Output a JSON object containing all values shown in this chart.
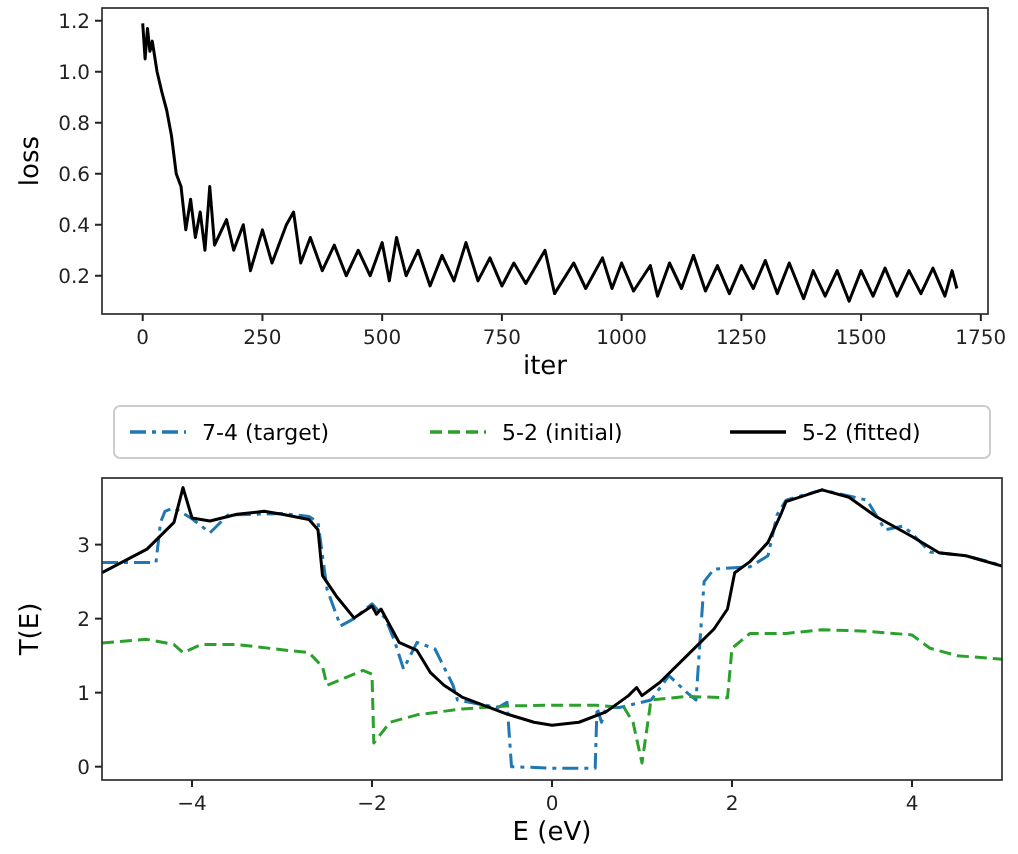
{
  "chart_data": [
    {
      "type": "line",
      "xlabel": "iter",
      "ylabel": "loss",
      "xlim": [
        -85,
        1765
      ],
      "ylim": [
        0.05,
        1.25
      ],
      "xticks": [
        0,
        250,
        500,
        750,
        1000,
        1250,
        1500,
        1750
      ],
      "yticks": [
        0.2,
        0.4,
        0.6,
        0.8,
        {
          "value": 1,
          "label": "1.0"
        },
        1.2
      ],
      "grid": false,
      "legend": false,
      "series": [
        {
          "color": "#000000",
          "line_style": "solid",
          "x": [
            0,
            5,
            10,
            15,
            20,
            30,
            40,
            50,
            60,
            70,
            80,
            90,
            100,
            110,
            120,
            130,
            140,
            150,
            175,
            190,
            210,
            225,
            250,
            270,
            300,
            315,
            330,
            350,
            375,
            400,
            425,
            450,
            475,
            500,
            515,
            530,
            550,
            575,
            600,
            625,
            650,
            675,
            700,
            725,
            750,
            775,
            800,
            840,
            860,
            900,
            925,
            960,
            980,
            1000,
            1025,
            1060,
            1075,
            1100,
            1125,
            1150,
            1175,
            1200,
            1225,
            1250,
            1275,
            1300,
            1325,
            1350,
            1380,
            1400,
            1425,
            1450,
            1475,
            1500,
            1525,
            1550,
            1575,
            1600,
            1625,
            1650,
            1675,
            1690,
            1700
          ],
          "values": [
            1.19,
            1.05,
            1.17,
            1.08,
            1.12,
            1.0,
            0.92,
            0.85,
            0.75,
            0.6,
            0.55,
            0.38,
            0.5,
            0.35,
            0.45,
            0.3,
            0.55,
            0.32,
            0.42,
            0.3,
            0.4,
            0.22,
            0.38,
            0.25,
            0.4,
            0.45,
            0.25,
            0.35,
            0.22,
            0.32,
            0.2,
            0.3,
            0.2,
            0.33,
            0.18,
            0.35,
            0.2,
            0.3,
            0.16,
            0.28,
            0.18,
            0.33,
            0.18,
            0.27,
            0.16,
            0.25,
            0.17,
            0.3,
            0.13,
            0.25,
            0.15,
            0.27,
            0.15,
            0.25,
            0.14,
            0.24,
            0.12,
            0.25,
            0.15,
            0.28,
            0.14,
            0.24,
            0.13,
            0.24,
            0.15,
            0.26,
            0.13,
            0.25,
            0.11,
            0.22,
            0.12,
            0.22,
            0.1,
            0.22,
            0.12,
            0.23,
            0.12,
            0.22,
            0.13,
            0.23,
            0.12,
            0.22,
            0.15
          ]
        }
      ]
    },
    {
      "type": "line",
      "xlabel": "E (eV)",
      "ylabel": "T(E)",
      "xlim": [
        -5,
        5
      ],
      "ylim": [
        -0.18,
        3.9
      ],
      "xticks": [
        {
          "value": -4,
          "label": "−4"
        },
        {
          "value": -2,
          "label": "−2"
        },
        0,
        2,
        4
      ],
      "yticks": [
        0,
        1,
        2,
        3
      ],
      "grid": false,
      "legend": "top",
      "series": [
        {
          "name": "7-4 (target)",
          "color": "#1f77b4",
          "line_style": "dashdot",
          "x": [
            -5,
            -4.4,
            -4.35,
            -4.3,
            -4.2,
            -4.0,
            -3.8,
            -3.6,
            -3.0,
            -2.7,
            -2.6,
            -2.5,
            -2.35,
            -2.2,
            -2.0,
            -1.85,
            -1.75,
            -1.65,
            -1.5,
            -1.3,
            -1.1,
            -1.05,
            -0.6,
            -0.5,
            -0.45,
            0.0,
            0.48,
            0.5,
            0.55,
            0.6,
            0.75,
            1.1,
            1.3,
            1.5,
            1.6,
            1.69,
            1.8,
            2.2,
            2.4,
            2.5,
            2.6,
            3.0,
            3.5,
            3.7,
            3.9,
            4.0,
            4.2,
            4.6,
            5.0
          ],
          "values": [
            2.76,
            2.76,
            3.3,
            3.45,
            3.5,
            3.35,
            3.16,
            3.4,
            3.42,
            3.38,
            3.3,
            2.4,
            1.9,
            2.0,
            2.2,
            2.0,
            1.7,
            1.32,
            1.68,
            1.59,
            1.1,
            0.9,
            0.8,
            0.87,
            0.0,
            -0.02,
            -0.02,
            0.8,
            0.6,
            0.8,
            0.8,
            0.9,
            1.23,
            1.0,
            0.9,
            2.5,
            2.67,
            2.7,
            2.85,
            3.4,
            3.6,
            3.74,
            3.6,
            3.2,
            3.25,
            3.15,
            2.9,
            2.85,
            2.72
          ]
        },
        {
          "name": "5-2 (initial)",
          "color": "#2ca02c",
          "line_style": "dashed",
          "x": [
            -5,
            -4.5,
            -4.2,
            -4.1,
            -3.9,
            -3.5,
            -3.0,
            -2.7,
            -2.55,
            -2.5,
            -2.3,
            -2.1,
            -2.0,
            -1.98,
            -1.8,
            -1.5,
            -1.0,
            -0.5,
            0,
            0.5,
            0.8,
            0.9,
            1.0,
            1.1,
            1.5,
            1.95,
            2.0,
            2.2,
            2.6,
            3.0,
            3.5,
            4.0,
            4.2,
            4.5,
            5.0
          ],
          "values": [
            1.67,
            1.72,
            1.65,
            1.54,
            1.65,
            1.65,
            1.58,
            1.54,
            1.35,
            1.1,
            1.2,
            1.3,
            1.25,
            0.32,
            0.6,
            0.7,
            0.78,
            0.82,
            0.83,
            0.83,
            0.8,
            0.6,
            0.05,
            0.9,
            0.95,
            0.93,
            1.6,
            1.8,
            1.8,
            1.85,
            1.83,
            1.78,
            1.6,
            1.5,
            1.45
          ]
        },
        {
          "name": "5-2 (fitted)",
          "color": "#000000",
          "line_style": "solid",
          "x": [
            -5,
            -4.5,
            -4.2,
            -4.1,
            -4.0,
            -3.8,
            -3.5,
            -3.2,
            -3.0,
            -2.7,
            -2.6,
            -2.55,
            -2.4,
            -2.2,
            -2.0,
            -1.95,
            -1.9,
            -1.7,
            -1.5,
            -1.35,
            -1.2,
            -1.0,
            -0.5,
            -0.2,
            0,
            0.3,
            0.6,
            0.85,
            0.94,
            1.0,
            1.2,
            1.5,
            1.8,
            1.95,
            2.03,
            2.2,
            2.4,
            2.55,
            2.6,
            3.0,
            3.3,
            3.6,
            4.0,
            4.3,
            4.6,
            5.0
          ],
          "values": [
            2.62,
            2.94,
            3.3,
            3.77,
            3.36,
            3.32,
            3.41,
            3.45,
            3.41,
            3.34,
            3.2,
            2.58,
            2.31,
            2.01,
            2.17,
            2.06,
            2.13,
            1.68,
            1.57,
            1.27,
            1.1,
            0.94,
            0.71,
            0.6,
            0.56,
            0.6,
            0.74,
            0.96,
            1.07,
            0.96,
            1.14,
            1.5,
            1.86,
            2.13,
            2.62,
            2.77,
            3.03,
            3.43,
            3.58,
            3.74,
            3.64,
            3.38,
            3.11,
            2.89,
            2.85,
            2.71
          ]
        }
      ]
    }
  ]
}
